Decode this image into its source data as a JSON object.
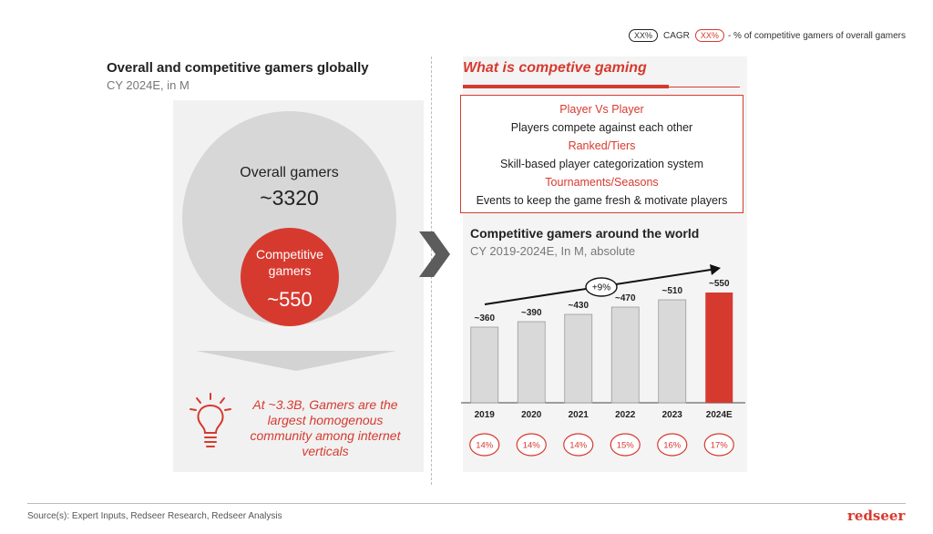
{
  "legend": {
    "cagr_pill": "XX%",
    "cagr_label": "CAGR",
    "pct_pill": "XX%",
    "pct_label": "- % of competitive gamers of overall gamers"
  },
  "left": {
    "title": "Overall and competitive gamers globally",
    "subtitle": "CY 2024E, in M",
    "overall_label": "Overall gamers",
    "overall_value": "~3320",
    "competitive_label_1": "Competitive",
    "competitive_label_2": "gamers",
    "competitive_value": "~550",
    "insight": "At ~3.3B, Gamers are the largest homogenous community among internet verticals"
  },
  "right": {
    "what_title": "What is competive gaming",
    "definitions": [
      {
        "heading": "Player Vs Player",
        "text": "Players compete against each other"
      },
      {
        "heading": "Ranked/Tiers",
        "text": "Skill-based player categorization system"
      },
      {
        "heading": "Tournaments/Seasons",
        "text": "Events to keep the game fresh & motivate players"
      }
    ]
  },
  "chart_data": {
    "type": "bar",
    "title": "Competitive gamers around the world",
    "subtitle": "CY 2019-2024E, In M, absolute",
    "categories": [
      "2019",
      "2020",
      "2021",
      "2022",
      "2023",
      "2024E"
    ],
    "values": [
      360,
      390,
      430,
      470,
      510,
      550
    ],
    "value_labels": [
      "~360",
      "~390",
      "~430",
      "~470",
      "~510",
      "~550"
    ],
    "share_labels": [
      "14%",
      "14%",
      "14%",
      "15%",
      "16%",
      "17%"
    ],
    "cagr_label": "+9%",
    "colors": {
      "default": "#d9d9d9",
      "highlight": "#d63a2f"
    },
    "highlight_index": 5
  },
  "footer": {
    "source": "Source(s): Expert Inputs, Redseer Research, Redseer Analysis",
    "brand": "redseer"
  }
}
